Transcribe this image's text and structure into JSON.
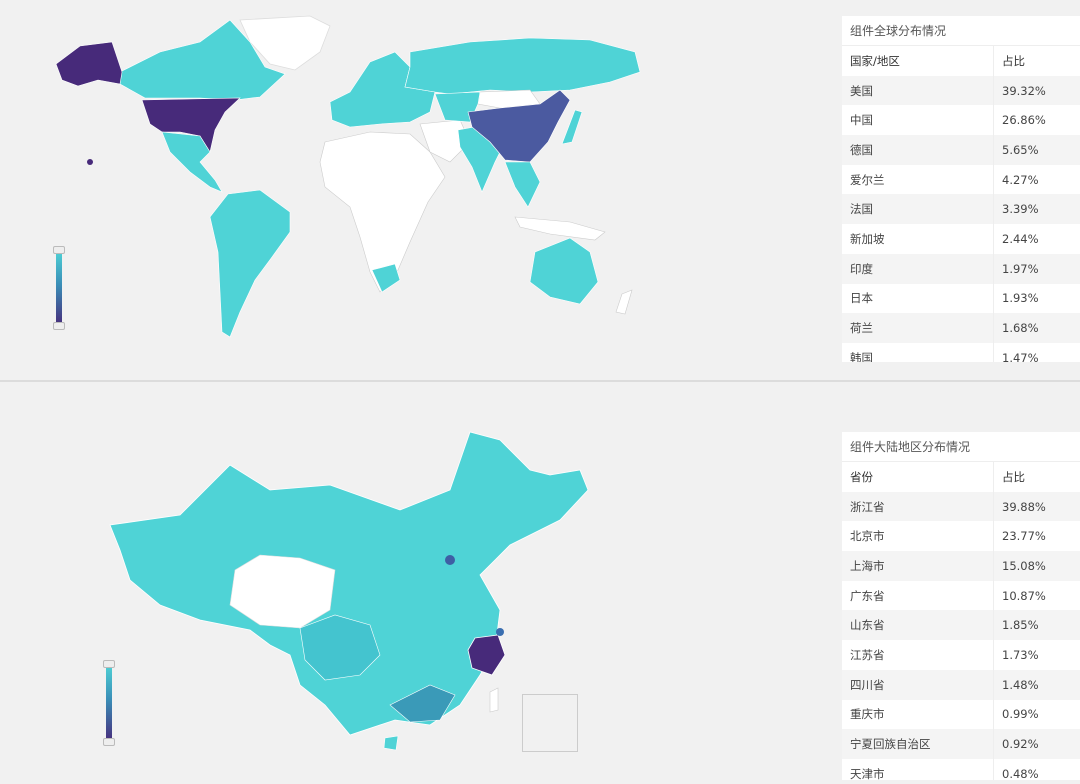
{
  "colors": {
    "low": "#4fd3d6",
    "mid": "#3a8fb8",
    "high": "#472a7a",
    "no_data": "#ffffff",
    "background": "#f1f1f1"
  },
  "world": {
    "table_title": "组件全球分布情况",
    "headers": [
      "国家/地区",
      "占比"
    ],
    "rows": [
      {
        "name": "美国",
        "value": "39.32%"
      },
      {
        "name": "中国",
        "value": "26.86%"
      },
      {
        "name": "德国",
        "value": "5.65%"
      },
      {
        "name": "爱尔兰",
        "value": "4.27%"
      },
      {
        "name": "法国",
        "value": "3.39%"
      },
      {
        "name": "新加坡",
        "value": "2.44%"
      },
      {
        "name": "印度",
        "value": "1.97%"
      },
      {
        "name": "日本",
        "value": "1.93%"
      },
      {
        "name": "荷兰",
        "value": "1.68%"
      },
      {
        "name": "韩国",
        "value": "1.47%"
      }
    ]
  },
  "china": {
    "table_title": "组件大陆地区分布情况",
    "headers": [
      "省份",
      "占比"
    ],
    "rows": [
      {
        "name": "浙江省",
        "value": "39.88%"
      },
      {
        "name": "北京市",
        "value": "23.77%"
      },
      {
        "name": "上海市",
        "value": "15.08%"
      },
      {
        "name": "广东省",
        "value": "10.87%"
      },
      {
        "name": "山东省",
        "value": "1.85%"
      },
      {
        "name": "江苏省",
        "value": "1.73%"
      },
      {
        "name": "四川省",
        "value": "1.48%"
      },
      {
        "name": "重庆市",
        "value": "0.99%"
      },
      {
        "name": "宁夏回族自治区",
        "value": "0.92%"
      },
      {
        "name": "天津市",
        "value": "0.48%"
      }
    ]
  }
}
